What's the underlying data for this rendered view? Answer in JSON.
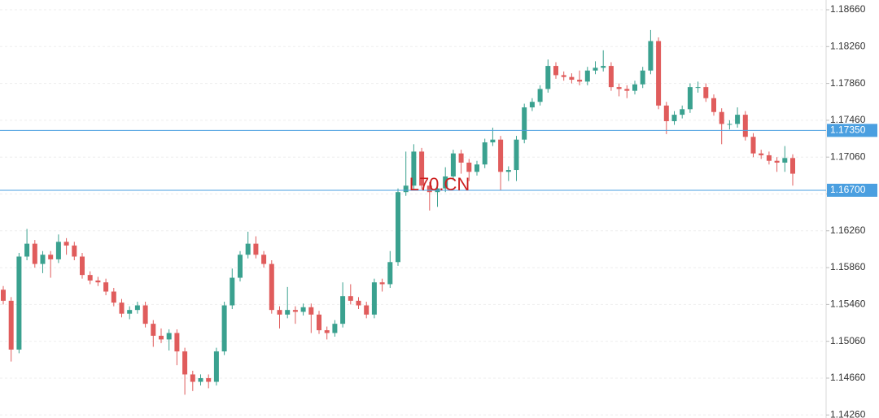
{
  "chart_data": {
    "type": "candlestick",
    "watermark": "L70.CN",
    "up_color": "#3aa18f",
    "down_color": "#e05c5c",
    "ylim": [
      1.14227,
      1.18766
    ],
    "yticks": [
      {
        "value": 1.1866,
        "label": "1.18660"
      },
      {
        "value": 1.1826,
        "label": "1.18260"
      },
      {
        "value": 1.1786,
        "label": "1.17860"
      },
      {
        "value": 1.1746,
        "label": "1.17460"
      },
      {
        "value": 1.1706,
        "label": "1.17060"
      },
      {
        "value": 1.1666,
        "label": "1.16660"
      },
      {
        "value": 1.1626,
        "label": "1.16260"
      },
      {
        "value": 1.1586,
        "label": "1.15860"
      },
      {
        "value": 1.1546,
        "label": "1.15460"
      },
      {
        "value": 1.1506,
        "label": "1.15060"
      },
      {
        "value": 1.1466,
        "label": "1.14660"
      },
      {
        "value": 1.1426,
        "label": "1.14260"
      }
    ],
    "grid": true,
    "price_lines": [
      {
        "value": 1.1735,
        "label": "1.17350",
        "color": "#4a9fe0"
      },
      {
        "value": 1.167,
        "label": "1.16700",
        "color": "#4a9fe0"
      }
    ],
    "open": [
      1.1562,
      1.155,
      1.1497,
      1.1598,
      1.1612,
      1.159,
      1.16,
      1.1595,
      1.1614,
      1.161,
      1.1598,
      1.1578,
      1.1572,
      1.157,
      1.156,
      1.1548,
      1.1536,
      1.154,
      1.1545,
      1.1525,
      1.1512,
      1.1508,
      1.1515,
      1.1495,
      1.147,
      1.1462,
      1.1466,
      1.1462,
      1.1495,
      1.1545,
      1.1575,
      1.16,
      1.1612,
      1.16,
      1.159,
      1.154,
      1.1535,
      1.154,
      1.1538,
      1.1543,
      1.1535,
      1.1518,
      1.1515,
      1.1525,
      1.1555,
      1.155,
      1.1545,
      1.1535,
      1.157,
      1.1568,
      1.1592,
      1.1668,
      1.1675,
      1.1712,
      1.1675,
      1.1668,
      1.1672,
      1.1685,
      1.171,
      1.17,
      1.169,
      1.1698,
      1.1722,
      1.1725,
      1.169,
      1.1692,
      1.1725,
      1.176,
      1.1766,
      1.178,
      1.1805,
      1.1795,
      1.1793,
      1.179,
      1.1788,
      1.18,
      1.1803,
      1.1805,
      1.1782,
      1.178,
      1.1778,
      1.1785,
      1.18,
      1.1832,
      1.1762,
      1.1745,
      1.1752,
      1.1758,
      1.1782,
      1.1782,
      1.177,
      1.1755,
      1.1742,
      1.1742,
      1.1752,
      1.1728,
      1.171,
      1.1708,
      1.1702,
      1.17,
      1.1705
    ],
    "high": [
      1.1566,
      1.1554,
      1.1602,
      1.1628,
      1.1616,
      1.1604,
      1.1604,
      1.1622,
      1.1618,
      1.1614,
      1.1602,
      1.1582,
      1.1576,
      1.1574,
      1.1564,
      1.1552,
      1.1544,
      1.1549,
      1.1549,
      1.1529,
      1.152,
      1.1519,
      1.1519,
      1.1499,
      1.1474,
      1.147,
      1.147,
      1.1499,
      1.1549,
      1.1585,
      1.1604,
      1.1625,
      1.162,
      1.1604,
      1.1594,
      1.1544,
      1.1565,
      1.1544,
      1.1547,
      1.1547,
      1.1539,
      1.1522,
      1.1529,
      1.157,
      1.1568,
      1.1554,
      1.1549,
      1.1574,
      1.1574,
      1.1604,
      1.1672,
      1.1712,
      1.172,
      1.1716,
      1.1679,
      1.168,
      1.1695,
      1.1714,
      1.1714,
      1.1704,
      1.1702,
      1.1726,
      1.1738,
      1.1729,
      1.1696,
      1.1729,
      1.1764,
      1.177,
      1.1784,
      1.1812,
      1.1809,
      1.1799,
      1.1797,
      1.18,
      1.1804,
      1.181,
      1.1822,
      1.1809,
      1.1786,
      1.1784,
      1.1789,
      1.1804,
      1.1844,
      1.1836,
      1.1766,
      1.1756,
      1.1762,
      1.1786,
      1.1788,
      1.1786,
      1.1774,
      1.1759,
      1.1746,
      1.176,
      1.1756,
      1.1732,
      1.1714,
      1.1712,
      1.1706,
      1.1718,
      1.1709
    ],
    "low": [
      1.1546,
      1.1484,
      1.1493,
      1.1594,
      1.1586,
      1.158,
      1.1575,
      1.1591,
      1.16,
      1.1594,
      1.1574,
      1.1568,
      1.1566,
      1.1556,
      1.1544,
      1.1532,
      1.153,
      1.1536,
      1.1521,
      1.15,
      1.1504,
      1.1496,
      1.148,
      1.1448,
      1.1452,
      1.1458,
      1.1455,
      1.1458,
      1.1491,
      1.1541,
      1.1571,
      1.1596,
      1.1596,
      1.1586,
      1.1536,
      1.152,
      1.1531,
      1.1525,
      1.1534,
      1.1515,
      1.1514,
      1.1508,
      1.1511,
      1.1521,
      1.1546,
      1.1541,
      1.1531,
      1.1531,
      1.156,
      1.1564,
      1.1588,
      1.1664,
      1.1671,
      1.1671,
      1.1648,
      1.1652,
      1.1668,
      1.1681,
      1.1688,
      1.168,
      1.1686,
      1.1694,
      1.1718,
      1.167,
      1.168,
      1.168,
      1.1721,
      1.1756,
      1.1762,
      1.1776,
      1.1791,
      1.1789,
      1.1786,
      1.1784,
      1.1784,
      1.1796,
      1.1799,
      1.1778,
      1.1772,
      1.177,
      1.1774,
      1.1781,
      1.1796,
      1.1758,
      1.1731,
      1.1741,
      1.1748,
      1.1754,
      1.1776,
      1.1766,
      1.1751,
      1.172,
      1.1736,
      1.1738,
      1.1724,
      1.1706,
      1.1704,
      1.1698,
      1.169,
      1.169,
      1.1675
    ],
    "close": [
      1.155,
      1.1497,
      1.1598,
      1.1612,
      1.159,
      1.16,
      1.1595,
      1.1614,
      1.161,
      1.1598,
      1.1578,
      1.1572,
      1.157,
      1.156,
      1.1548,
      1.1536,
      1.154,
      1.1545,
      1.1525,
      1.1512,
      1.1508,
      1.1515,
      1.1495,
      1.147,
      1.1462,
      1.1466,
      1.1462,
      1.1495,
      1.1545,
      1.1575,
      1.16,
      1.1612,
      1.16,
      1.159,
      1.154,
      1.1535,
      1.154,
      1.1538,
      1.1543,
      1.1535,
      1.1518,
      1.1515,
      1.1525,
      1.1555,
      1.155,
      1.1545,
      1.1535,
      1.157,
      1.1568,
      1.1592,
      1.1668,
      1.1675,
      1.1712,
      1.1675,
      1.1668,
      1.1672,
      1.1685,
      1.171,
      1.17,
      1.169,
      1.1698,
      1.1722,
      1.1725,
      1.169,
      1.1692,
      1.1725,
      1.176,
      1.1766,
      1.178,
      1.1805,
      1.1795,
      1.1793,
      1.179,
      1.1788,
      1.18,
      1.1803,
      1.1805,
      1.1782,
      1.178,
      1.1778,
      1.1785,
      1.18,
      1.1832,
      1.1762,
      1.1745,
      1.1752,
      1.1758,
      1.1782,
      1.1782,
      1.177,
      1.1755,
      1.1742,
      1.1742,
      1.1752,
      1.1728,
      1.171,
      1.1708,
      1.1702,
      1.17,
      1.1705,
      1.1688
    ]
  }
}
